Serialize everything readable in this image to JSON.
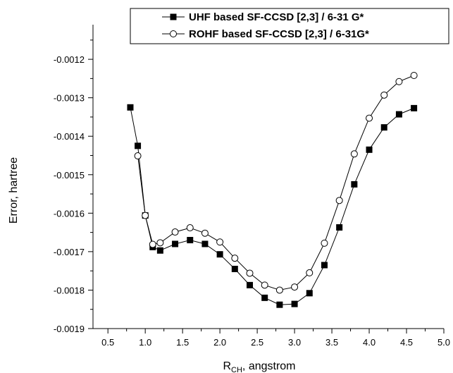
{
  "chart_data": {
    "type": "line",
    "title": "",
    "xlabel_main": "R",
    "xlabel_sub": "CH",
    "xlabel_rest": ", angstrom",
    "ylabel": "Error, hartree",
    "xlim": [
      0.3,
      5.0
    ],
    "ylim": [
      -0.0019,
      -0.00111
    ],
    "x_ticks": [
      0.5,
      1.0,
      1.5,
      2.0,
      2.5,
      3.0,
      3.5,
      4.0,
      4.5,
      5.0
    ],
    "x_tick_labels": [
      "0.5",
      "1.0",
      "1.5",
      "2.0",
      "2.5",
      "3.0",
      "3.5",
      "4.0",
      "4.5",
      "5.0"
    ],
    "y_ticks": [
      -0.0019,
      -0.0018,
      -0.0017,
      -0.0016,
      -0.0015,
      -0.0014,
      -0.0013,
      -0.0012
    ],
    "y_tick_labels": [
      "-0.0019",
      "-0.0018",
      "-0.0017",
      "-0.0016",
      "-0.0015",
      "-0.0014",
      "-0.0013",
      "-0.0012"
    ],
    "grid": false,
    "legend_position": "top-right",
    "series": [
      {
        "name": "UHF based SF-CCSD [2,3] / 6-31 G*",
        "marker": "filled-square",
        "color": "#000000",
        "x": [
          0.8,
          0.9,
          1.0,
          1.1,
          1.2,
          1.4,
          1.6,
          1.8,
          2.0,
          2.2,
          2.4,
          2.6,
          2.8,
          3.0,
          3.2,
          3.4,
          3.6,
          3.8,
          4.0,
          4.2,
          4.4,
          4.6
        ],
        "y": [
          -0.001325,
          -0.001425,
          -0.001606,
          -0.001688,
          -0.001697,
          -0.00168,
          -0.00167,
          -0.00168,
          -0.001707,
          -0.001745,
          -0.001787,
          -0.00182,
          -0.001838,
          -0.001836,
          -0.001808,
          -0.001735,
          -0.001637,
          -0.001525,
          -0.001435,
          -0.001377,
          -0.001343,
          -0.001327
        ]
      },
      {
        "name": "ROHF based SF-CCSD [2,3] / 6-31G*",
        "marker": "open-circle",
        "color": "#000000",
        "x": [
          0.9,
          1.0,
          1.1,
          1.2,
          1.4,
          1.6,
          1.8,
          2.0,
          2.2,
          2.4,
          2.6,
          2.8,
          3.0,
          3.2,
          3.4,
          3.6,
          3.8,
          4.0,
          4.2,
          4.4,
          4.6
        ],
        "y": [
          -0.001451,
          -0.001606,
          -0.001681,
          -0.001677,
          -0.001649,
          -0.001638,
          -0.001652,
          -0.001675,
          -0.001717,
          -0.001756,
          -0.001787,
          -0.0018,
          -0.001792,
          -0.001755,
          -0.001678,
          -0.001567,
          -0.001446,
          -0.001353,
          -0.001293,
          -0.001258,
          -0.001242
        ]
      }
    ]
  }
}
